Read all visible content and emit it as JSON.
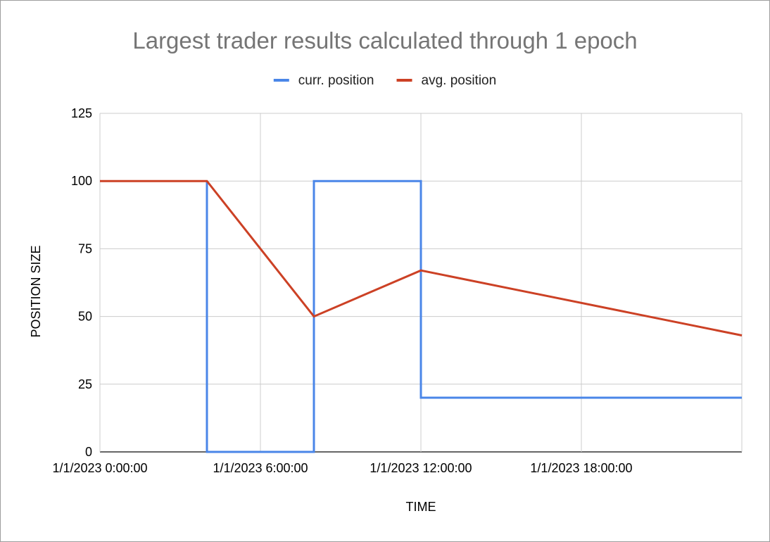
{
  "chart_data": {
    "type": "line",
    "title": "Largest trader results calculated through 1 epoch",
    "xlabel": "TIME",
    "ylabel": "POSITION SIZE",
    "x_tick_labels": [
      "1/1/2023 0:00:00",
      "1/1/2023 6:00:00",
      "1/1/2023 12:00:00",
      "1/1/2023 18:00:00"
    ],
    "x_tick_hours": [
      0,
      6,
      12,
      18
    ],
    "y_tick_labels": [
      "0",
      "25",
      "50",
      "75",
      "100",
      "125"
    ],
    "ylim": [
      0,
      125
    ],
    "xlim_hours": [
      0,
      24
    ],
    "grid": true,
    "legend_position": "top",
    "series": [
      {
        "name": "curr. position",
        "color": "#4a86e8",
        "step": true,
        "points": [
          {
            "x": "1/1/2023 4:00:00",
            "y": 100
          },
          {
            "x": "1/1/2023 4:00:00",
            "y": 0
          },
          {
            "x": "1/1/2023 8:00:00",
            "y": 0
          },
          {
            "x": "1/1/2023 8:00:00",
            "y": 100
          },
          {
            "x": "1/1/2023 12:00:00",
            "y": 100
          },
          {
            "x": "1/1/2023 12:00:00",
            "y": 20
          },
          {
            "x": "1/2/2023 0:00:00",
            "y": 20
          }
        ]
      },
      {
        "name": "avg. position",
        "color": "#cc4125",
        "step": false,
        "points": [
          {
            "x": "1/1/2023 0:00:00",
            "y": 100
          },
          {
            "x": "1/1/2023 4:00:00",
            "y": 100
          },
          {
            "x": "1/1/2023 8:00:00",
            "y": 50
          },
          {
            "x": "1/1/2023 12:00:00",
            "y": 67
          },
          {
            "x": "1/2/2023 0:00:00",
            "y": 43
          }
        ]
      }
    ]
  }
}
